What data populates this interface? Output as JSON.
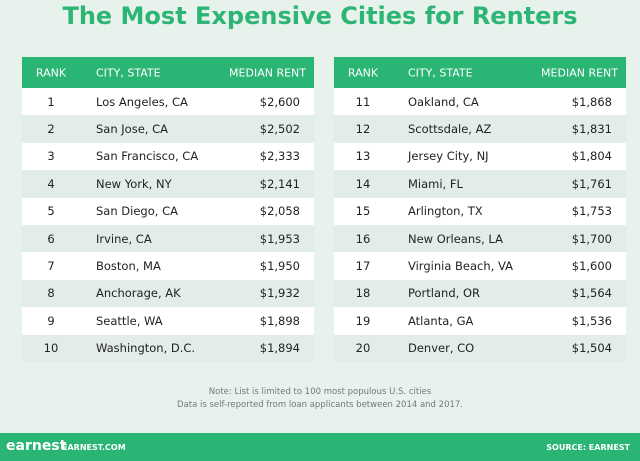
{
  "title": "The Most Expensive Cities for Renters",
  "tables": [
    {
      "header": [
        "RANK",
        "CITY, STATE",
        "MEDIAN RENT"
      ],
      "rows": [
        [
          "1",
          "Los Angeles, CA",
          "$2,600"
        ],
        [
          "2",
          "San Jose, CA",
          "$2,502"
        ],
        [
          "3",
          "San Francisco, CA",
          "$2,333"
        ],
        [
          "4",
          "New York, NY",
          "$2,141"
        ],
        [
          "5",
          "San Diego, CA",
          "$2,058"
        ],
        [
          "6",
          "Irvine, CA",
          "$1,953"
        ],
        [
          "7",
          "Boston, MA",
          "$1,950"
        ],
        [
          "8",
          "Anchorage, AK",
          "$1,932"
        ],
        [
          "9",
          "Seattle, WA",
          "$1,898"
        ],
        [
          "10",
          "Washington, D.C.",
          "$1,894"
        ]
      ]
    },
    {
      "header": [
        "RANK",
        "CITY, STATE",
        "MEDIAN RENT"
      ],
      "rows": [
        [
          "11",
          "Oakland, CA",
          "$1,868"
        ],
        [
          "12",
          "Scottsdale, AZ",
          "$1,831"
        ],
        [
          "13",
          "Jersey City, NJ",
          "$1,804"
        ],
        [
          "14",
          "Miami, FL",
          "$1,761"
        ],
        [
          "15",
          "Arlington, TX",
          "$1,753"
        ],
        [
          "16",
          "New Orleans, LA",
          "$1,700"
        ],
        [
          "17",
          "Virginia Beach, VA",
          "$1,600"
        ],
        [
          "18",
          "Portland, OR",
          "$1,564"
        ],
        [
          "19",
          "Atlanta, GA",
          "$1,536"
        ],
        [
          "20",
          "Denver, CO",
          "$1,504"
        ]
      ]
    }
  ],
  "notes": [
    "Note: List is limited to 100 most populous U.S. cities",
    "Data is self-reported from loan applicants between 2014 and 2017."
  ],
  "footer": {
    "logo": "earnest",
    "site": "EARNEST.COM",
    "source": "SOURCE: EARNEST"
  }
}
